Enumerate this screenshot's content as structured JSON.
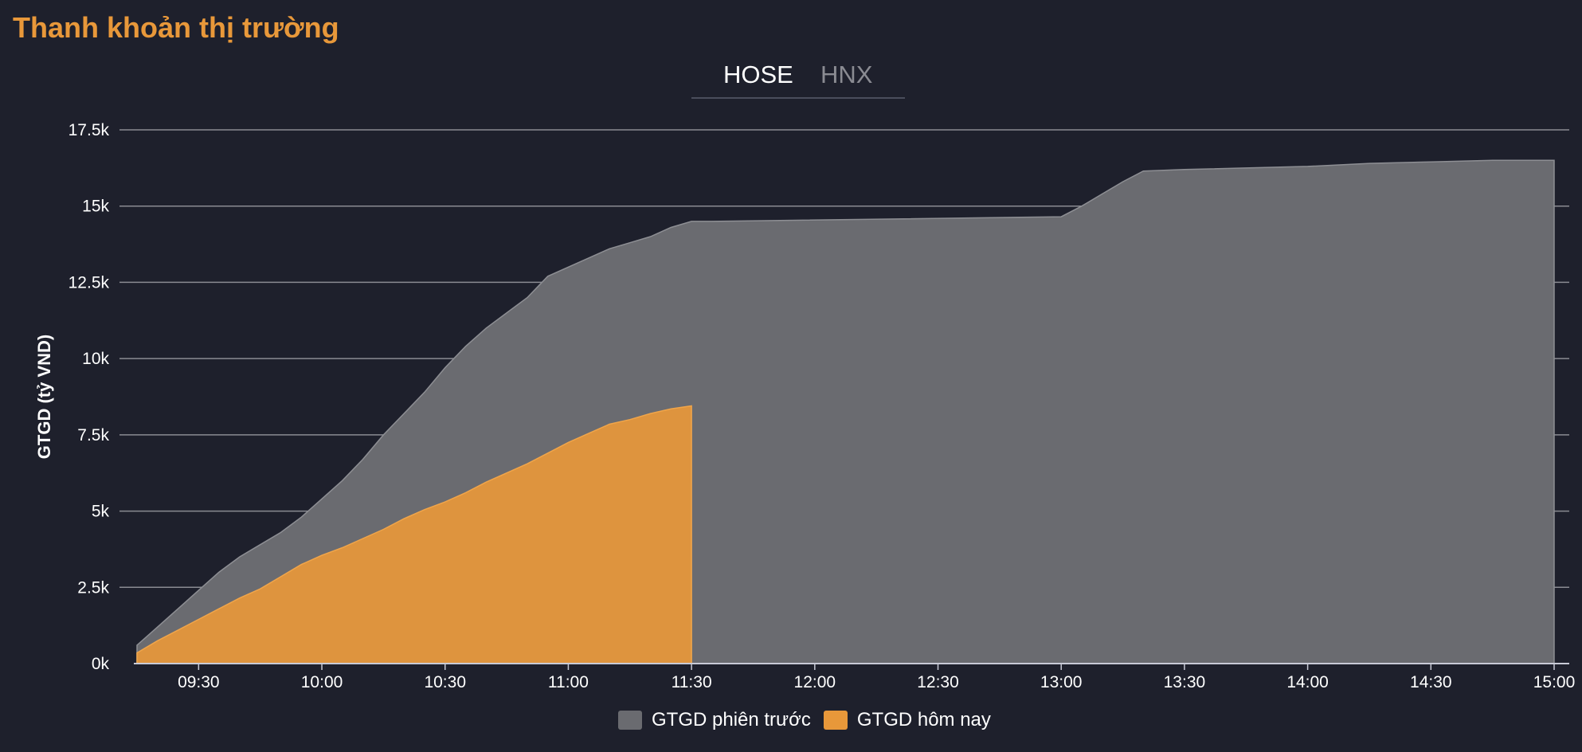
{
  "title": "Thanh khoản thị trường",
  "tabs": [
    {
      "label": "HOSE",
      "active": true
    },
    {
      "label": "HNX",
      "active": false
    }
  ],
  "colors": {
    "previous": "#6a6b70",
    "today": "#e8983a",
    "grid": "#8a8b92",
    "background": "#1e202c"
  },
  "chart_data": {
    "type": "area",
    "ylabel": "GTGD (tỷ VND)",
    "ylim": [
      0,
      17500
    ],
    "yticks": [
      0,
      2500,
      5000,
      7500,
      10000,
      12500,
      15000,
      17500
    ],
    "ytick_labels": [
      "0k",
      "2.5k",
      "5k",
      "7.5k",
      "10k",
      "12.5k",
      "15k",
      "17.5k"
    ],
    "xlim": [
      "09:15",
      "15:00"
    ],
    "xtick_labels": [
      "09:30",
      "10:00",
      "10:30",
      "11:00",
      "11:30",
      "12:00",
      "12:30",
      "13:00",
      "13:30",
      "14:00",
      "14:30",
      "15:00"
    ],
    "grid": true,
    "legend_position": "bottom-center",
    "series": [
      {
        "name": "GTGD phiên trước",
        "color": "#6a6b70",
        "points": [
          [
            "09:15",
            600
          ],
          [
            "09:20",
            1200
          ],
          [
            "09:25",
            1800
          ],
          [
            "09:30",
            2400
          ],
          [
            "09:35",
            3000
          ],
          [
            "09:40",
            3500
          ],
          [
            "09:45",
            3900
          ],
          [
            "09:50",
            4300
          ],
          [
            "09:55",
            4800
          ],
          [
            "10:00",
            5400
          ],
          [
            "10:05",
            6000
          ],
          [
            "10:10",
            6700
          ],
          [
            "10:15",
            7500
          ],
          [
            "10:20",
            8200
          ],
          [
            "10:25",
            8900
          ],
          [
            "10:30",
            9700
          ],
          [
            "10:35",
            10400
          ],
          [
            "10:40",
            11000
          ],
          [
            "10:45",
            11500
          ],
          [
            "10:50",
            12000
          ],
          [
            "10:55",
            12700
          ],
          [
            "11:00",
            13000
          ],
          [
            "11:05",
            13300
          ],
          [
            "11:10",
            13600
          ],
          [
            "11:15",
            13800
          ],
          [
            "11:20",
            14000
          ],
          [
            "11:25",
            14300
          ],
          [
            "11:30",
            14500
          ],
          [
            "11:35",
            14500
          ],
          [
            "13:00",
            14650
          ],
          [
            "13:05",
            15000
          ],
          [
            "13:10",
            15400
          ],
          [
            "13:15",
            15800
          ],
          [
            "13:20",
            16150
          ],
          [
            "13:30",
            16200
          ],
          [
            "14:00",
            16300
          ],
          [
            "14:15",
            16400
          ],
          [
            "14:30",
            16450
          ],
          [
            "14:45",
            16500
          ],
          [
            "15:00",
            16500
          ]
        ]
      },
      {
        "name": "GTGD hôm nay",
        "color": "#e8983a",
        "points": [
          [
            "09:15",
            350
          ],
          [
            "09:20",
            750
          ],
          [
            "09:25",
            1100
          ],
          [
            "09:30",
            1450
          ],
          [
            "09:35",
            1800
          ],
          [
            "09:40",
            2150
          ],
          [
            "09:45",
            2450
          ],
          [
            "09:50",
            2850
          ],
          [
            "09:55",
            3250
          ],
          [
            "10:00",
            3550
          ],
          [
            "10:05",
            3800
          ],
          [
            "10:10",
            4100
          ],
          [
            "10:15",
            4400
          ],
          [
            "10:20",
            4750
          ],
          [
            "10:25",
            5050
          ],
          [
            "10:30",
            5300
          ],
          [
            "10:35",
            5600
          ],
          [
            "10:40",
            5950
          ],
          [
            "10:45",
            6250
          ],
          [
            "10:50",
            6550
          ],
          [
            "10:55",
            6900
          ],
          [
            "11:00",
            7250
          ],
          [
            "11:05",
            7550
          ],
          [
            "11:10",
            7850
          ],
          [
            "11:15",
            8000
          ],
          [
            "11:20",
            8200
          ],
          [
            "11:25",
            8350
          ],
          [
            "11:30",
            8450
          ]
        ]
      }
    ]
  }
}
